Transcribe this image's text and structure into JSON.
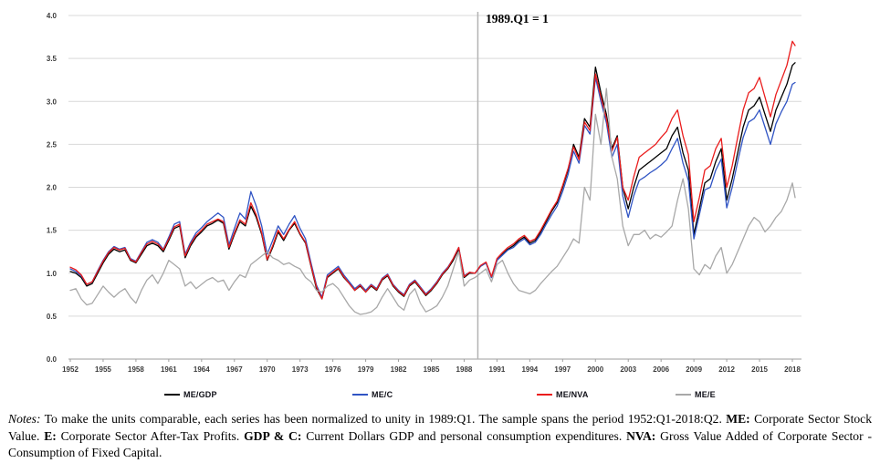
{
  "figure": {
    "annotation_label": "1989.Q1 = 1",
    "notes_segments": [
      {
        "text": "Notes:",
        "style": "italic"
      },
      {
        "text": " To make the units comparable, each series has been normalized to unity in 1989:Q1.  The sample spans the period 1952:Q1-2018:Q2.  ",
        "style": "normal"
      },
      {
        "text": "ME:",
        "style": "bold"
      },
      {
        "text": " Corporate Sector Stock Value.  ",
        "style": "normal"
      },
      {
        "text": "E:",
        "style": "bold"
      },
      {
        "text": " Corporate Sector After-Tax Profits.  ",
        "style": "normal"
      },
      {
        "text": "GDP & C:",
        "style": "bold"
      },
      {
        "text": " Current Dollars GDP and personal consumption expenditures.  ",
        "style": "normal"
      },
      {
        "text": "NVA:",
        "style": "bold"
      },
      {
        "text": " Gross Value Added of Corporate Sector - Consumption of Fixed Capital.",
        "style": "normal"
      }
    ]
  },
  "chart_data": {
    "type": "line",
    "title": "",
    "annotation": "1989.Q1 = 1",
    "grid": true,
    "legend_position": "bottom",
    "reference_line_x": 1989.25,
    "x_axis": {
      "start": 1952,
      "step": 0.5,
      "end": 2018.25,
      "tick_labels": [
        "1952",
        "1955",
        "1958",
        "1961",
        "1964",
        "1967",
        "1970",
        "1973",
        "1976",
        "1979",
        "1982",
        "1985",
        "1988",
        "1991",
        "1994",
        "1997",
        "2000",
        "2003",
        "2006",
        "2009",
        "2012",
        "2015",
        "2018"
      ]
    },
    "y_axis": {
      "min": 0,
      "max": 4,
      "tick_step": 0.5,
      "tick_labels": [
        "0.0",
        "0.5",
        "1.0",
        "1.5",
        "2.0",
        "2.5",
        "3.0",
        "3.5",
        "4.0"
      ]
    },
    "colors": {
      "gridline": "#d9d9d9",
      "axis": "#9e9e9e",
      "reference_line": "#b3b3b3"
    },
    "series": [
      {
        "name": "ME/GDP",
        "color": "#000000",
        "values": [
          1.02,
          1.0,
          0.95,
          0.85,
          0.88,
          1.0,
          1.12,
          1.22,
          1.28,
          1.25,
          1.27,
          1.15,
          1.12,
          1.22,
          1.32,
          1.35,
          1.32,
          1.25,
          1.38,
          1.52,
          1.55,
          1.18,
          1.32,
          1.42,
          1.48,
          1.55,
          1.58,
          1.62,
          1.58,
          1.28,
          1.45,
          1.6,
          1.55,
          1.78,
          1.65,
          1.45,
          1.15,
          1.3,
          1.48,
          1.38,
          1.5,
          1.58,
          1.45,
          1.35,
          1.08,
          0.82,
          0.7,
          0.95,
          1.0,
          1.05,
          0.95,
          0.88,
          0.8,
          0.85,
          0.78,
          0.85,
          0.8,
          0.92,
          0.97,
          0.85,
          0.78,
          0.73,
          0.85,
          0.9,
          0.82,
          0.74,
          0.8,
          0.88,
          0.98,
          1.05,
          1.15,
          1.28,
          0.95,
          1.0,
          1.0,
          1.08,
          1.12,
          0.95,
          1.15,
          1.22,
          1.28,
          1.32,
          1.38,
          1.42,
          1.35,
          1.38,
          1.48,
          1.6,
          1.72,
          1.82,
          2.0,
          2.2,
          2.5,
          2.35,
          2.8,
          2.7,
          3.4,
          3.1,
          2.85,
          2.45,
          2.6,
          2.0,
          1.75,
          2.0,
          2.2,
          2.25,
          2.3,
          2.35,
          2.4,
          2.45,
          2.6,
          2.7,
          2.4,
          2.2,
          1.45,
          1.75,
          2.05,
          2.1,
          2.3,
          2.45,
          1.85,
          2.1,
          2.4,
          2.7,
          2.9,
          2.95,
          3.05,
          2.85,
          2.65,
          2.9,
          3.05,
          3.2,
          3.42,
          3.45
        ]
      },
      {
        "name": "ME/C",
        "color": "#3054c4",
        "values": [
          1.05,
          1.02,
          0.97,
          0.87,
          0.9,
          1.03,
          1.15,
          1.25,
          1.31,
          1.28,
          1.3,
          1.17,
          1.14,
          1.25,
          1.36,
          1.39,
          1.36,
          1.28,
          1.42,
          1.57,
          1.6,
          1.22,
          1.36,
          1.47,
          1.53,
          1.6,
          1.65,
          1.7,
          1.65,
          1.33,
          1.52,
          1.7,
          1.63,
          1.95,
          1.78,
          1.55,
          1.22,
          1.38,
          1.55,
          1.45,
          1.57,
          1.67,
          1.52,
          1.4,
          1.12,
          0.86,
          0.72,
          0.98,
          1.03,
          1.08,
          0.98,
          0.9,
          0.82,
          0.87,
          0.8,
          0.87,
          0.82,
          0.94,
          0.99,
          0.87,
          0.8,
          0.75,
          0.87,
          0.92,
          0.84,
          0.76,
          0.82,
          0.9,
          1.0,
          1.07,
          1.17,
          1.3,
          0.97,
          1.01,
          1.0,
          1.08,
          1.12,
          0.95,
          1.15,
          1.21,
          1.27,
          1.3,
          1.36,
          1.4,
          1.33,
          1.36,
          1.45,
          1.57,
          1.68,
          1.78,
          1.95,
          2.15,
          2.42,
          2.28,
          2.72,
          2.62,
          3.28,
          3.0,
          2.75,
          2.35,
          2.5,
          1.9,
          1.65,
          1.9,
          2.08,
          2.12,
          2.17,
          2.21,
          2.26,
          2.32,
          2.45,
          2.57,
          2.28,
          2.08,
          1.4,
          1.68,
          1.97,
          2.0,
          2.2,
          2.33,
          1.76,
          2.0,
          2.3,
          2.58,
          2.76,
          2.8,
          2.9,
          2.7,
          2.5,
          2.74,
          2.88,
          3.0,
          3.2,
          3.22
        ]
      },
      {
        "name": "ME/NVA",
        "color": "#ea1c1c",
        "values": [
          1.07,
          1.04,
          0.98,
          0.87,
          0.9,
          1.02,
          1.14,
          1.24,
          1.3,
          1.27,
          1.29,
          1.16,
          1.13,
          1.24,
          1.34,
          1.37,
          1.34,
          1.27,
          1.4,
          1.54,
          1.57,
          1.2,
          1.34,
          1.44,
          1.5,
          1.57,
          1.6,
          1.63,
          1.6,
          1.3,
          1.47,
          1.62,
          1.57,
          1.82,
          1.68,
          1.47,
          1.16,
          1.32,
          1.5,
          1.4,
          1.51,
          1.6,
          1.46,
          1.36,
          1.09,
          0.84,
          0.7,
          0.96,
          1.01,
          1.06,
          0.96,
          0.88,
          0.8,
          0.86,
          0.78,
          0.86,
          0.81,
          0.93,
          0.98,
          0.86,
          0.79,
          0.74,
          0.86,
          0.91,
          0.83,
          0.75,
          0.81,
          0.89,
          0.99,
          1.06,
          1.17,
          1.3,
          0.96,
          1.01,
          1.0,
          1.09,
          1.13,
          0.96,
          1.17,
          1.24,
          1.3,
          1.34,
          1.4,
          1.44,
          1.37,
          1.4,
          1.5,
          1.62,
          1.74,
          1.84,
          2.02,
          2.22,
          2.47,
          2.32,
          2.76,
          2.66,
          3.32,
          3.05,
          2.8,
          2.42,
          2.58,
          2.0,
          1.85,
          2.12,
          2.35,
          2.4,
          2.45,
          2.5,
          2.58,
          2.65,
          2.8,
          2.9,
          2.6,
          2.38,
          1.6,
          1.88,
          2.2,
          2.25,
          2.45,
          2.57,
          2.0,
          2.25,
          2.58,
          2.9,
          3.1,
          3.15,
          3.28,
          3.05,
          2.82,
          3.08,
          3.25,
          3.42,
          3.7,
          3.65
        ]
      },
      {
        "name": "ME/E",
        "color": "#a8a8a8",
        "values": [
          0.8,
          0.82,
          0.7,
          0.63,
          0.65,
          0.75,
          0.85,
          0.78,
          0.72,
          0.78,
          0.82,
          0.72,
          0.65,
          0.8,
          0.92,
          0.98,
          0.88,
          1.0,
          1.15,
          1.1,
          1.05,
          0.85,
          0.9,
          0.82,
          0.87,
          0.92,
          0.95,
          0.9,
          0.92,
          0.8,
          0.9,
          0.98,
          0.95,
          1.1,
          1.15,
          1.2,
          1.25,
          1.18,
          1.15,
          1.1,
          1.12,
          1.08,
          1.05,
          0.95,
          0.9,
          0.8,
          0.78,
          0.85,
          0.88,
          0.82,
          0.72,
          0.62,
          0.55,
          0.52,
          0.53,
          0.55,
          0.6,
          0.72,
          0.82,
          0.72,
          0.62,
          0.57,
          0.75,
          0.82,
          0.65,
          0.55,
          0.58,
          0.62,
          0.72,
          0.85,
          1.05,
          1.25,
          0.85,
          0.92,
          0.95,
          1.0,
          1.05,
          0.9,
          1.1,
          1.15,
          1.0,
          0.88,
          0.8,
          0.78,
          0.76,
          0.8,
          0.88,
          0.95,
          1.02,
          1.08,
          1.18,
          1.28,
          1.4,
          1.35,
          2.0,
          1.85,
          2.85,
          2.5,
          3.15,
          2.35,
          2.1,
          1.55,
          1.32,
          1.45,
          1.45,
          1.5,
          1.4,
          1.45,
          1.42,
          1.48,
          1.55,
          1.85,
          2.1,
          1.75,
          1.05,
          0.98,
          1.1,
          1.05,
          1.2,
          1.3,
          1.0,
          1.1,
          1.25,
          1.4,
          1.55,
          1.65,
          1.6,
          1.48,
          1.55,
          1.65,
          1.72,
          1.85,
          2.05,
          1.88
        ]
      }
    ]
  }
}
